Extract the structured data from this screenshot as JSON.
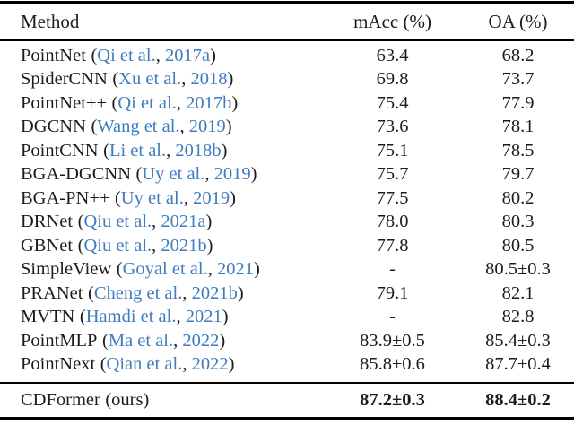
{
  "table": {
    "columns": [
      "Method",
      "mAcc (%)",
      "OA (%)"
    ],
    "punct": {
      "open": "(",
      "sep": ", ",
      "close": ")"
    },
    "rows": [
      {
        "method": "PointNet",
        "authors": "Qi et al.",
        "year": "2017a",
        "macc": "63.4",
        "oa": "68.2"
      },
      {
        "method": "SpiderCNN",
        "authors": "Xu et al.",
        "year": "2018",
        "macc": "69.8",
        "oa": "73.7"
      },
      {
        "method": "PointNet++",
        "authors": "Qi et al.",
        "year": "2017b",
        "macc": "75.4",
        "oa": "77.9"
      },
      {
        "method": "DGCNN",
        "authors": "Wang et al.",
        "year": "2019",
        "macc": "73.6",
        "oa": "78.1"
      },
      {
        "method": "PointCNN",
        "authors": "Li et al.",
        "year": "2018b",
        "macc": "75.1",
        "oa": "78.5"
      },
      {
        "method": "BGA-DGCNN",
        "authors": "Uy et al.",
        "year": "2019",
        "macc": "75.7",
        "oa": "79.7"
      },
      {
        "method": "BGA-PN++",
        "authors": "Uy et al.",
        "year": "2019",
        "macc": "77.5",
        "oa": "80.2"
      },
      {
        "method": "DRNet",
        "authors": "Qiu et al.",
        "year": "2021a",
        "macc": "78.0",
        "oa": "80.3"
      },
      {
        "method": "GBNet",
        "authors": "Qiu et al.",
        "year": "2021b",
        "macc": "77.8",
        "oa": "80.5"
      },
      {
        "method": "SimpleView",
        "authors": "Goyal et al.",
        "year": "2021",
        "macc": "-",
        "oa": "80.5±0.3"
      },
      {
        "method": "PRANet",
        "authors": "Cheng et al.",
        "year": "2021b",
        "macc": "79.1",
        "oa": "82.1"
      },
      {
        "method": "MVTN",
        "authors": "Hamdi et al.",
        "year": "2021",
        "macc": "-",
        "oa": "82.8"
      },
      {
        "method": "PointMLP",
        "authors": "Ma et al.",
        "year": "2022",
        "macc": "83.9±0.5",
        "oa": "85.4±0.3"
      },
      {
        "method": "PointNext",
        "authors": "Qian et al.",
        "year": "2022",
        "macc": "85.8±0.6",
        "oa": "87.7±0.4"
      }
    ],
    "final": {
      "method": "CDFormer",
      "suffix": "(ours)",
      "macc": "87.2±0.3",
      "oa": "88.4±0.2"
    }
  },
  "colors": {
    "citation_link": "#3e7cbf",
    "text": "#1c1c1c",
    "rule": "#000000"
  }
}
